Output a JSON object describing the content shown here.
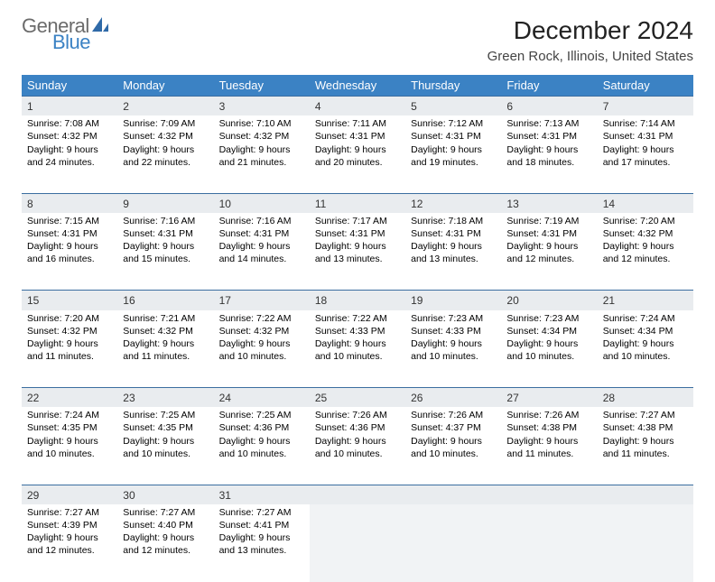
{
  "logo": {
    "word1": "General",
    "word2": "Blue"
  },
  "title": "December 2024",
  "location": "Green Rock, Illinois, United States",
  "colors": {
    "header_bg": "#3b82c4",
    "header_text": "#ffffff",
    "daynum_bg": "#e9ecef",
    "border": "#3b6ea0",
    "logo_gray": "#6b6b6b",
    "logo_blue": "#3b82c4"
  },
  "day_headers": [
    "Sunday",
    "Monday",
    "Tuesday",
    "Wednesday",
    "Thursday",
    "Friday",
    "Saturday"
  ],
  "weeks": [
    [
      {
        "n": "1",
        "sr": "Sunrise: 7:08 AM",
        "ss": "Sunset: 4:32 PM",
        "dl": "Daylight: 9 hours and 24 minutes."
      },
      {
        "n": "2",
        "sr": "Sunrise: 7:09 AM",
        "ss": "Sunset: 4:32 PM",
        "dl": "Daylight: 9 hours and 22 minutes."
      },
      {
        "n": "3",
        "sr": "Sunrise: 7:10 AM",
        "ss": "Sunset: 4:32 PM",
        "dl": "Daylight: 9 hours and 21 minutes."
      },
      {
        "n": "4",
        "sr": "Sunrise: 7:11 AM",
        "ss": "Sunset: 4:31 PM",
        "dl": "Daylight: 9 hours and 20 minutes."
      },
      {
        "n": "5",
        "sr": "Sunrise: 7:12 AM",
        "ss": "Sunset: 4:31 PM",
        "dl": "Daylight: 9 hours and 19 minutes."
      },
      {
        "n": "6",
        "sr": "Sunrise: 7:13 AM",
        "ss": "Sunset: 4:31 PM",
        "dl": "Daylight: 9 hours and 18 minutes."
      },
      {
        "n": "7",
        "sr": "Sunrise: 7:14 AM",
        "ss": "Sunset: 4:31 PM",
        "dl": "Daylight: 9 hours and 17 minutes."
      }
    ],
    [
      {
        "n": "8",
        "sr": "Sunrise: 7:15 AM",
        "ss": "Sunset: 4:31 PM",
        "dl": "Daylight: 9 hours and 16 minutes."
      },
      {
        "n": "9",
        "sr": "Sunrise: 7:16 AM",
        "ss": "Sunset: 4:31 PM",
        "dl": "Daylight: 9 hours and 15 minutes."
      },
      {
        "n": "10",
        "sr": "Sunrise: 7:16 AM",
        "ss": "Sunset: 4:31 PM",
        "dl": "Daylight: 9 hours and 14 minutes."
      },
      {
        "n": "11",
        "sr": "Sunrise: 7:17 AM",
        "ss": "Sunset: 4:31 PM",
        "dl": "Daylight: 9 hours and 13 minutes."
      },
      {
        "n": "12",
        "sr": "Sunrise: 7:18 AM",
        "ss": "Sunset: 4:31 PM",
        "dl": "Daylight: 9 hours and 13 minutes."
      },
      {
        "n": "13",
        "sr": "Sunrise: 7:19 AM",
        "ss": "Sunset: 4:31 PM",
        "dl": "Daylight: 9 hours and 12 minutes."
      },
      {
        "n": "14",
        "sr": "Sunrise: 7:20 AM",
        "ss": "Sunset: 4:32 PM",
        "dl": "Daylight: 9 hours and 12 minutes."
      }
    ],
    [
      {
        "n": "15",
        "sr": "Sunrise: 7:20 AM",
        "ss": "Sunset: 4:32 PM",
        "dl": "Daylight: 9 hours and 11 minutes."
      },
      {
        "n": "16",
        "sr": "Sunrise: 7:21 AM",
        "ss": "Sunset: 4:32 PM",
        "dl": "Daylight: 9 hours and 11 minutes."
      },
      {
        "n": "17",
        "sr": "Sunrise: 7:22 AM",
        "ss": "Sunset: 4:32 PM",
        "dl": "Daylight: 9 hours and 10 minutes."
      },
      {
        "n": "18",
        "sr": "Sunrise: 7:22 AM",
        "ss": "Sunset: 4:33 PM",
        "dl": "Daylight: 9 hours and 10 minutes."
      },
      {
        "n": "19",
        "sr": "Sunrise: 7:23 AM",
        "ss": "Sunset: 4:33 PM",
        "dl": "Daylight: 9 hours and 10 minutes."
      },
      {
        "n": "20",
        "sr": "Sunrise: 7:23 AM",
        "ss": "Sunset: 4:34 PM",
        "dl": "Daylight: 9 hours and 10 minutes."
      },
      {
        "n": "21",
        "sr": "Sunrise: 7:24 AM",
        "ss": "Sunset: 4:34 PM",
        "dl": "Daylight: 9 hours and 10 minutes."
      }
    ],
    [
      {
        "n": "22",
        "sr": "Sunrise: 7:24 AM",
        "ss": "Sunset: 4:35 PM",
        "dl": "Daylight: 9 hours and 10 minutes."
      },
      {
        "n": "23",
        "sr": "Sunrise: 7:25 AM",
        "ss": "Sunset: 4:35 PM",
        "dl": "Daylight: 9 hours and 10 minutes."
      },
      {
        "n": "24",
        "sr": "Sunrise: 7:25 AM",
        "ss": "Sunset: 4:36 PM",
        "dl": "Daylight: 9 hours and 10 minutes."
      },
      {
        "n": "25",
        "sr": "Sunrise: 7:26 AM",
        "ss": "Sunset: 4:36 PM",
        "dl": "Daylight: 9 hours and 10 minutes."
      },
      {
        "n": "26",
        "sr": "Sunrise: 7:26 AM",
        "ss": "Sunset: 4:37 PM",
        "dl": "Daylight: 9 hours and 10 minutes."
      },
      {
        "n": "27",
        "sr": "Sunrise: 7:26 AM",
        "ss": "Sunset: 4:38 PM",
        "dl": "Daylight: 9 hours and 11 minutes."
      },
      {
        "n": "28",
        "sr": "Sunrise: 7:27 AM",
        "ss": "Sunset: 4:38 PM",
        "dl": "Daylight: 9 hours and 11 minutes."
      }
    ],
    [
      {
        "n": "29",
        "sr": "Sunrise: 7:27 AM",
        "ss": "Sunset: 4:39 PM",
        "dl": "Daylight: 9 hours and 12 minutes."
      },
      {
        "n": "30",
        "sr": "Sunrise: 7:27 AM",
        "ss": "Sunset: 4:40 PM",
        "dl": "Daylight: 9 hours and 12 minutes."
      },
      {
        "n": "31",
        "sr": "Sunrise: 7:27 AM",
        "ss": "Sunset: 4:41 PM",
        "dl": "Daylight: 9 hours and 13 minutes."
      },
      null,
      null,
      null,
      null
    ]
  ]
}
